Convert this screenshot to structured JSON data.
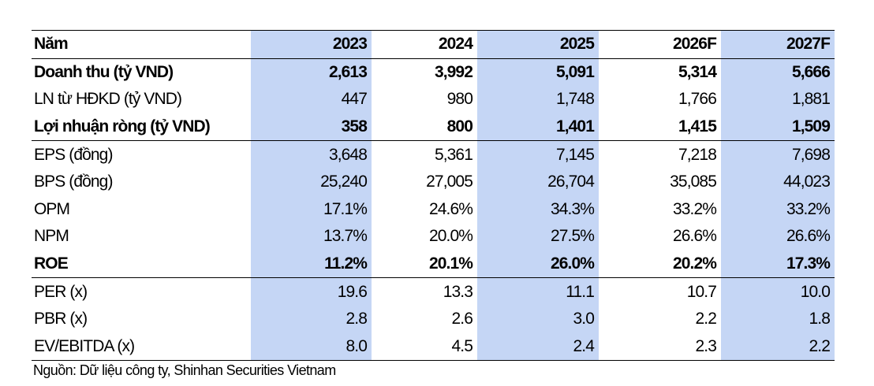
{
  "table": {
    "header": {
      "label": "Năm",
      "years": [
        "2023",
        "2024",
        "2025",
        "2026F",
        "2027F"
      ]
    },
    "rows": [
      {
        "label": "Doanh thu (tỷ VND)",
        "values": [
          "2,613",
          "3,992",
          "5,091",
          "5,314",
          "5,666"
        ],
        "bold": true
      },
      {
        "label": "LN từ HĐKD (tỷ VND)",
        "values": [
          "447",
          "980",
          "1,748",
          "1,766",
          "1,881"
        ],
        "bold": false
      },
      {
        "label": "Lợi nhuận ròng (tỷ VND)",
        "values": [
          "358",
          "800",
          "1,401",
          "1,415",
          "1,509"
        ],
        "bold": true
      },
      {
        "label": "EPS (đồng)",
        "values": [
          "3,648",
          "5,361",
          "7,145",
          "7,218",
          "7,698"
        ],
        "bold": false
      },
      {
        "label": "BPS (đồng)",
        "values": [
          "25,240",
          "27,005",
          "26,704",
          "35,085",
          "44,023"
        ],
        "bold": false
      },
      {
        "label": "OPM",
        "values": [
          "17.1%",
          "24.6%",
          "34.3%",
          "33.2%",
          "33.2%"
        ],
        "bold": false
      },
      {
        "label": "NPM",
        "values": [
          "13.7%",
          "20.0%",
          "27.5%",
          "26.6%",
          "26.6%"
        ],
        "bold": false
      },
      {
        "label": "ROE",
        "values": [
          "11.2%",
          "20.1%",
          "26.0%",
          "20.2%",
          "17.3%"
        ],
        "bold": true
      },
      {
        "label": "PER (x)",
        "values": [
          "19.6",
          "13.3",
          "11.1",
          "10.7",
          "10.0"
        ],
        "bold": false
      },
      {
        "label": "PBR (x)",
        "values": [
          "2.8",
          "2.6",
          "3.0",
          "2.2",
          "1.8"
        ],
        "bold": false
      },
      {
        "label": "EV/EBITDA (x)",
        "values": [
          "8.0",
          "4.5",
          "2.4",
          "2.3",
          "2.2"
        ],
        "bold": false
      }
    ]
  },
  "source": "Nguồn: Dữ liệu công ty, Shinhan Securities Vietnam",
  "colors": {
    "shade": "#c5d6f5",
    "rule": "#000000"
  }
}
